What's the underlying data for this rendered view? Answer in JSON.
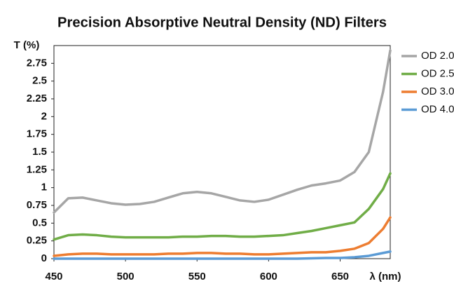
{
  "chart_data": {
    "type": "line",
    "title": "Precision Absorptive Neutral Density (ND) Filters",
    "ylabel": "T (%)",
    "xlabel": "λ (nm)",
    "x": [
      450,
      460,
      470,
      480,
      490,
      500,
      510,
      520,
      530,
      540,
      550,
      560,
      570,
      580,
      590,
      600,
      610,
      620,
      630,
      640,
      650,
      660,
      670,
      680,
      685
    ],
    "series": [
      {
        "name": "OD 2.0",
        "color": "#a6a6a6",
        "values": [
          0.65,
          0.85,
          0.86,
          0.82,
          0.78,
          0.76,
          0.77,
          0.8,
          0.86,
          0.92,
          0.94,
          0.92,
          0.87,
          0.82,
          0.8,
          0.83,
          0.9,
          0.97,
          1.03,
          1.06,
          1.1,
          1.22,
          1.5,
          2.35,
          2.93
        ]
      },
      {
        "name": "OD 2.5",
        "color": "#70ad47",
        "values": [
          0.27,
          0.33,
          0.34,
          0.33,
          0.31,
          0.3,
          0.3,
          0.3,
          0.3,
          0.31,
          0.31,
          0.32,
          0.32,
          0.31,
          0.31,
          0.32,
          0.33,
          0.36,
          0.39,
          0.43,
          0.47,
          0.51,
          0.7,
          0.98,
          1.2
        ]
      },
      {
        "name": "OD 3.0",
        "color": "#ed7d31",
        "values": [
          0.04,
          0.06,
          0.07,
          0.07,
          0.06,
          0.06,
          0.06,
          0.06,
          0.07,
          0.07,
          0.08,
          0.08,
          0.07,
          0.07,
          0.06,
          0.06,
          0.07,
          0.08,
          0.09,
          0.09,
          0.11,
          0.14,
          0.22,
          0.42,
          0.58
        ]
      },
      {
        "name": "OD 4.0",
        "color": "#5b9bd5",
        "values": [
          0,
          0,
          0,
          0,
          0,
          0,
          0,
          0,
          0,
          0,
          0,
          0,
          0,
          0,
          0,
          0,
          0,
          0,
          0.005,
          0.01,
          0.01,
          0.02,
          0.04,
          0.08,
          0.1
        ]
      }
    ],
    "xlim": [
      450,
      685
    ],
    "ylim": [
      0,
      3
    ],
    "xticks": [
      450,
      500,
      550,
      600,
      650
    ],
    "yticks": [
      0,
      0.25,
      0.5,
      0.75,
      1,
      1.25,
      1.5,
      1.75,
      2,
      2.25,
      2.5,
      2.75
    ],
    "legend": "right"
  }
}
